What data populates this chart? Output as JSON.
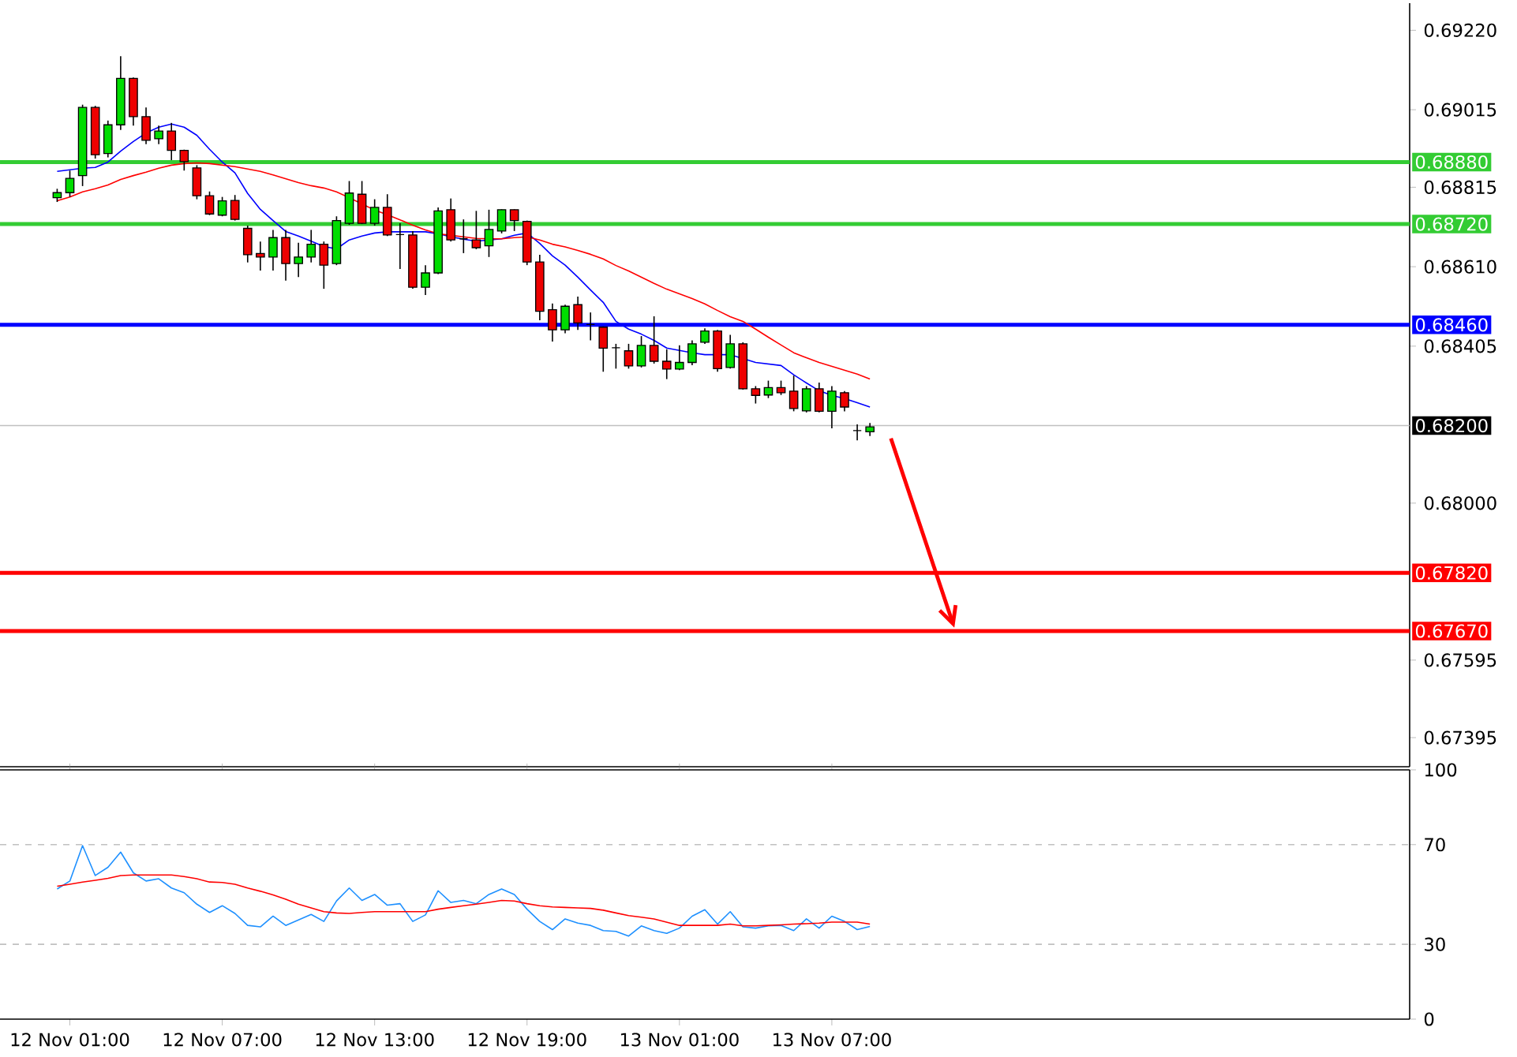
{
  "chart_data": [
    {
      "type": "candlestick",
      "tick_labels": "y",
      "categories": [
        null,
        null,
        null,
        null,
        null,
        null,
        null,
        null,
        null,
        null,
        null,
        null,
        null,
        null,
        null,
        null,
        null,
        null,
        null,
        null,
        null,
        null,
        null,
        null,
        null,
        null,
        null,
        null,
        null,
        null,
        null,
        null,
        null,
        null,
        null,
        null,
        null,
        null,
        null,
        null,
        null,
        null,
        null,
        null,
        null,
        null,
        null,
        null,
        null,
        null,
        null,
        null,
        null,
        null,
        null,
        null,
        null,
        null,
        null,
        null,
        null,
        null,
        null,
        null,
        null
      ],
      "ohlc": [
        [
          0.68788,
          0.68811,
          0.68777,
          0.68801
        ],
        [
          0.68801,
          0.68858,
          0.6879,
          0.68838
        ],
        [
          0.68845,
          0.69028,
          0.68818,
          0.69021
        ],
        [
          0.69021,
          0.69025,
          0.68889,
          0.68899
        ],
        [
          0.68902,
          0.68987,
          0.68892,
          0.68976
        ],
        [
          0.68976,
          0.69153,
          0.68963,
          0.69096
        ],
        [
          0.69096,
          0.69098,
          0.68974,
          0.68997
        ],
        [
          0.68997,
          0.69021,
          0.68926,
          0.68936
        ],
        [
          0.6894,
          0.68974,
          0.68926,
          0.6896
        ],
        [
          0.6896,
          0.68981,
          0.68885,
          0.6891
        ],
        [
          0.6891,
          0.68912,
          0.68858,
          0.68881
        ],
        [
          0.68865,
          0.68872,
          0.68784,
          0.68793
        ],
        [
          0.68793,
          0.68804,
          0.68743,
          0.68746
        ],
        [
          0.68743,
          0.6879,
          0.6874,
          0.6878
        ],
        [
          0.68781,
          0.68795,
          0.68729,
          0.68732
        ],
        [
          0.68709,
          0.68716,
          0.68621,
          0.68641
        ],
        [
          0.68644,
          0.68675,
          0.686,
          0.68635
        ],
        [
          0.68635,
          0.68705,
          0.686,
          0.68685
        ],
        [
          0.68685,
          0.68705,
          0.68574,
          0.68618
        ],
        [
          0.68618,
          0.68672,
          0.68583,
          0.68635
        ],
        [
          0.68635,
          0.68705,
          0.68621,
          0.68668
        ],
        [
          0.68668,
          0.68675,
          0.68553,
          0.68614
        ],
        [
          0.68618,
          0.6874,
          0.68614,
          0.68729
        ],
        [
          0.68722,
          0.68831,
          0.68718,
          0.688
        ],
        [
          0.68797,
          0.68831,
          0.6872,
          0.68722
        ],
        [
          0.68722,
          0.68784,
          0.68716,
          0.68763
        ],
        [
          0.68763,
          0.68797,
          0.68689,
          0.68692
        ],
        [
          0.68693,
          0.68722,
          0.68604,
          0.68693
        ],
        [
          0.68692,
          0.68702,
          0.68553,
          0.68557
        ],
        [
          0.68557,
          0.68614,
          0.68537,
          0.68594
        ],
        [
          0.68594,
          0.68763,
          0.68591,
          0.68754
        ],
        [
          0.68757,
          0.68786,
          0.68675,
          0.68679
        ],
        [
          0.68682,
          0.68732,
          0.68645,
          0.68682
        ],
        [
          0.68679,
          0.68754,
          0.68655,
          0.68659
        ],
        [
          0.68664,
          0.68757,
          0.68635,
          0.68706
        ],
        [
          0.68702,
          0.68758,
          0.68696,
          0.68757
        ],
        [
          0.68757,
          0.68758,
          0.68702,
          0.68729
        ],
        [
          0.68727,
          0.68729,
          0.68614,
          0.68622
        ],
        [
          0.68622,
          0.68641,
          0.68472,
          0.68495
        ],
        [
          0.68499,
          0.68515,
          0.68417,
          0.68447
        ],
        [
          0.68447,
          0.68512,
          0.68438,
          0.68508
        ],
        [
          0.68512,
          0.68533,
          0.68447,
          0.68465
        ],
        [
          0.68461,
          0.68492,
          0.6842,
          0.68461
        ],
        [
          0.68454,
          0.68456,
          0.68339,
          0.684
        ],
        [
          0.68401,
          0.68411,
          0.68347,
          0.68401
        ],
        [
          0.68393,
          0.68411,
          0.68347,
          0.68354
        ],
        [
          0.68354,
          0.68431,
          0.6835,
          0.68407
        ],
        [
          0.68407,
          0.68482,
          0.6836,
          0.68366
        ],
        [
          0.68366,
          0.68397,
          0.6832,
          0.68346
        ],
        [
          0.68346,
          0.68407,
          0.68343,
          0.68363
        ],
        [
          0.68363,
          0.6842,
          0.68356,
          0.68411
        ],
        [
          0.68415,
          0.68451,
          0.68411,
          0.68444
        ],
        [
          0.68444,
          0.68447,
          0.68339,
          0.68347
        ],
        [
          0.6835,
          0.68434,
          0.68347,
          0.68411
        ],
        [
          0.68411,
          0.68415,
          0.68293,
          0.68295
        ],
        [
          0.68295,
          0.68302,
          0.68257,
          0.68278
        ],
        [
          0.68279,
          0.68316,
          0.68271,
          0.68298
        ],
        [
          0.68298,
          0.68316,
          0.68279,
          0.68285
        ],
        [
          0.68289,
          0.68329,
          0.68237,
          0.68244
        ],
        [
          0.68238,
          0.68302,
          0.68234,
          0.68295
        ],
        [
          0.68295,
          0.68311,
          0.68234,
          0.68237
        ],
        [
          0.68237,
          0.68302,
          0.68193,
          0.68289
        ],
        [
          0.68285,
          0.68289,
          0.68237,
          0.68248
        ],
        [
          0.68187,
          0.68203,
          0.68162,
          0.68187
        ],
        [
          0.68184,
          0.68207,
          0.68173,
          0.68197
        ]
      ],
      "colors": [
        "#00dd00",
        "#00dd00",
        "#00dd00",
        "#ee0000",
        "#00dd00",
        "#00dd00",
        "#ee0000",
        "#ee0000",
        "#00dd00",
        "#ee0000",
        "#ee0000",
        "#ee0000",
        "#ee0000",
        "#00dd00",
        "#ee0000",
        "#ee0000",
        "#ee0000",
        "#00dd00",
        "#ee0000",
        "#00dd00",
        "#00dd00",
        "#ee0000",
        "#00dd00",
        "#00dd00",
        "#ee0000",
        "#00dd00",
        "#ee0000",
        "#000000",
        "#ee0000",
        "#00dd00",
        "#00dd00",
        "#ee0000",
        "#000000",
        "#ee0000",
        "#00dd00",
        "#00dd00",
        "#ee0000",
        "#ee0000",
        "#ee0000",
        "#ee0000",
        "#00dd00",
        "#ee0000",
        "#000000",
        "#ee0000",
        "#000000",
        "#ee0000",
        "#00dd00",
        "#ee0000",
        "#ee0000",
        "#00dd00",
        "#00dd00",
        "#00dd00",
        "#ee0000",
        "#00dd00",
        "#ee0000",
        "#ee0000",
        "#00dd00",
        "#ee0000",
        "#ee0000",
        "#00dd00",
        "#ee0000",
        "#00dd00",
        "#ee0000",
        "#000000",
        "#00dd00"
      ],
      "series": [
        {
          "type": "line",
          "color": "#0000ff",
          "values": [
            0.68856,
            0.6886,
            0.68864,
            0.68866,
            0.6888,
            0.68908,
            0.68933,
            0.68955,
            0.6897,
            0.68978,
            0.6897,
            0.68949,
            0.68913,
            0.6888,
            0.68852,
            0.68799,
            0.68758,
            0.68729,
            0.68701,
            0.68689,
            0.68676,
            0.68662,
            0.68656,
            0.68679,
            0.68689,
            0.68697,
            0.687,
            0.687,
            0.687,
            0.687,
            0.68695,
            0.68687,
            0.68681,
            0.68676,
            0.68679,
            0.68682,
            0.68691,
            0.68697,
            0.6867,
            0.68638,
            0.68614,
            0.68583,
            0.6855,
            0.68518,
            0.68469,
            0.68449,
            0.68436,
            0.6842,
            0.684,
            0.68394,
            0.68388,
            0.68383,
            0.68383,
            0.68383,
            0.68373,
            0.68363,
            0.68359,
            0.68355,
            0.68331,
            0.6831,
            0.6829,
            0.68278,
            0.6827,
            0.68259,
            0.68248
          ]
        },
        {
          "type": "line",
          "color": "#ff0000",
          "values": [
            0.6878,
            0.6879,
            0.68803,
            0.68811,
            0.68821,
            0.68835,
            0.68845,
            0.68854,
            0.68864,
            0.68872,
            0.68876,
            0.68878,
            0.68876,
            0.68872,
            0.68868,
            0.68862,
            0.68856,
            0.68847,
            0.68837,
            0.68827,
            0.68819,
            0.68813,
            0.68803,
            0.68788,
            0.68772,
            0.68756,
            0.68744,
            0.68731,
            0.68717,
            0.68705,
            0.68695,
            0.68691,
            0.68687,
            0.68683,
            0.68682,
            0.68682,
            0.68685,
            0.68687,
            0.68679,
            0.68668,
            0.68661,
            0.68652,
            0.68642,
            0.6863,
            0.68613,
            0.68599,
            0.68583,
            0.68567,
            0.68552,
            0.6854,
            0.68528,
            0.68514,
            0.68497,
            0.68481,
            0.68469,
            0.68449,
            0.68428,
            0.68408,
            0.68388,
            0.68375,
            0.68363,
            0.68353,
            0.68343,
            0.68333,
            0.6832
          ]
        }
      ],
      "ylim": [
        0.6732,
        0.6929
      ],
      "yticks": [
        {
          "value": 0.6922,
          "label": "0.69220"
        },
        {
          "value": 0.69015,
          "label": "0.69015"
        },
        {
          "value": 0.68815,
          "label": "0.68815"
        },
        {
          "value": 0.6861,
          "label": "0.68610"
        },
        {
          "value": 0.68405,
          "label": "0.68405"
        },
        {
          "value": 0.68,
          "label": "0.68000"
        },
        {
          "value": 0.67595,
          "label": "0.67595"
        },
        {
          "value": 0.67395,
          "label": "0.67395"
        }
      ],
      "ref_lines": [
        {
          "axis": "y",
          "value": 0.6888,
          "label": "0.68880",
          "color": "#33cc33"
        },
        {
          "axis": "y",
          "value": 0.6872,
          "label": "0.68720",
          "color": "#33cc33"
        },
        {
          "axis": "y",
          "value": 0.6846,
          "label": "0.68460",
          "color": "#0000ff"
        },
        {
          "axis": "y",
          "value": 0.682,
          "label": "0.68200",
          "color": "#c0c0c0"
        },
        {
          "axis": "y",
          "value": 0.6782,
          "label": "0.67820",
          "color": "#ff0000"
        },
        {
          "axis": "y",
          "value": 0.6767,
          "label": "0.67670",
          "color": "#ff0000"
        }
      ]
    },
    {
      "type": "line",
      "categories": [
        null,
        "12 Nov 01:00",
        null,
        null,
        null,
        null,
        null,
        null,
        null,
        null,
        null,
        null,
        null,
        "12 Nov 07:00",
        null,
        null,
        null,
        null,
        null,
        null,
        null,
        null,
        null,
        null,
        null,
        "12 Nov 13:00",
        null,
        null,
        null,
        null,
        null,
        null,
        null,
        null,
        null,
        null,
        null,
        "12 Nov 19:00",
        null,
        null,
        null,
        null,
        null,
        null,
        null,
        null,
        null,
        null,
        null,
        "13 Nov 01:00",
        null,
        null,
        null,
        null,
        null,
        null,
        null,
        null,
        null,
        null,
        null,
        "13 Nov 07:00",
        null,
        null,
        null
      ],
      "series": [
        {
          "color": "#1e90ff",
          "values": [
            52.2,
            55.4,
            69.6,
            57.6,
            60.9,
            67.0,
            58.7,
            55.4,
            56.3,
            52.6,
            50.7,
            46.1,
            42.8,
            45.5,
            42.4,
            37.6,
            37.0,
            41.3,
            37.6,
            39.8,
            42.0,
            39.2,
            47.4,
            52.6,
            47.6,
            50.0,
            45.7,
            46.3,
            39.2,
            41.8,
            51.5,
            46.8,
            47.6,
            46.3,
            50.0,
            52.2,
            50.0,
            44.1,
            39.2,
            35.9,
            40.2,
            38.5,
            37.6,
            35.5,
            35.2,
            33.3,
            37.4,
            35.5,
            34.4,
            36.5,
            41.3,
            43.9,
            38.1,
            43.1,
            37.0,
            36.5,
            37.4,
            37.6,
            35.5,
            40.2,
            36.5,
            41.3,
            39.2,
            35.9,
            37.2
          ]
        },
        {
          "color": "#ff0000",
          "values": [
            53.3,
            54.1,
            55.0,
            55.7,
            56.5,
            57.6,
            57.8,
            57.8,
            57.8,
            57.8,
            57.2,
            56.3,
            55.0,
            54.8,
            54.1,
            52.6,
            51.3,
            49.8,
            48.1,
            46.1,
            44.6,
            43.1,
            42.6,
            42.4,
            42.8,
            43.1,
            43.1,
            43.1,
            43.1,
            43.1,
            44.1,
            44.8,
            45.5,
            46.1,
            46.8,
            47.6,
            47.4,
            46.3,
            45.5,
            45.0,
            44.8,
            44.6,
            44.4,
            43.7,
            42.6,
            41.5,
            40.9,
            40.2,
            38.9,
            37.6,
            37.6,
            37.6,
            37.6,
            38.1,
            37.4,
            37.4,
            37.6,
            37.8,
            38.1,
            38.3,
            38.5,
            38.9,
            38.9,
            38.9,
            38.1
          ]
        }
      ],
      "ylim": [
        0,
        100
      ],
      "yticks": [
        0,
        30,
        70,
        100
      ],
      "ref_lines": [
        {
          "axis": "y",
          "value": 30,
          "color": "#c0c0c0",
          "line_style": "dashed"
        },
        {
          "axis": "y",
          "value": 70,
          "color": "#c0c0c0",
          "line_style": "dashed"
        }
      ]
    }
  ]
}
